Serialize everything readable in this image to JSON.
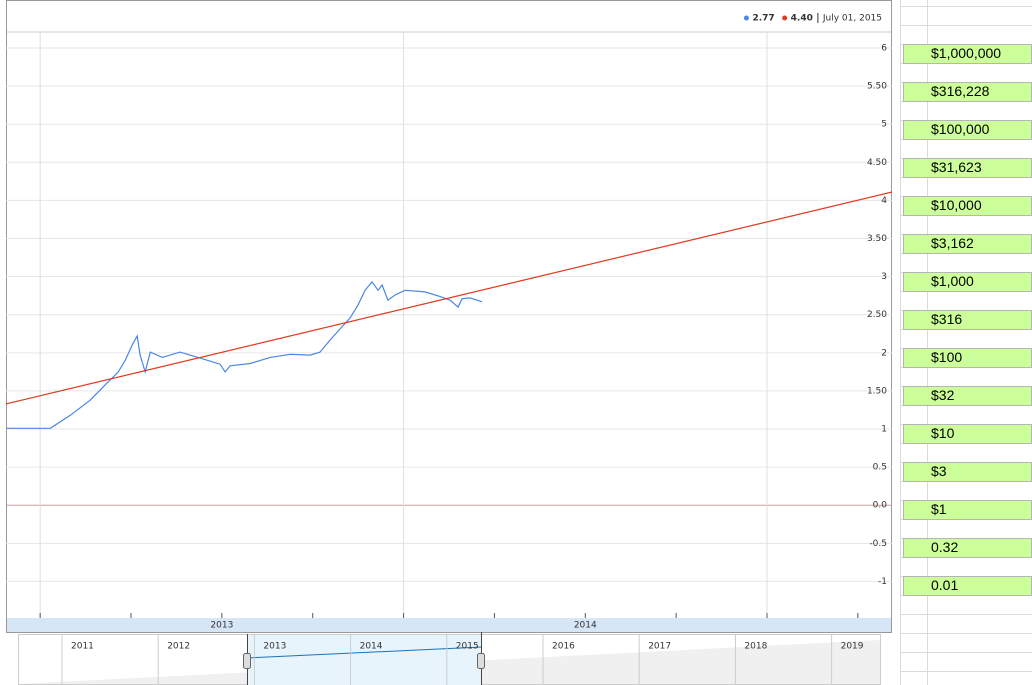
{
  "chart_data": {
    "type": "line",
    "xlim": [
      2012.906,
      2015.344
    ],
    "ylim": [
      -1.48,
      6.21
    ],
    "xticks": [
      2013,
      2013.25,
      2013.5,
      2013.75,
      2014,
      2014.25,
      2014.5,
      2014.75,
      2015,
      2015.25
    ],
    "x_labels": [
      {
        "value": 2013.5,
        "label": "2013"
      },
      {
        "value": 2014.5,
        "label": "2014"
      }
    ],
    "yticks": [
      {
        "value": 6,
        "label": "6"
      },
      {
        "value": 5.5,
        "label": "5.50"
      },
      5,
      {
        "value": 4.5,
        "label": "4.50"
      },
      4,
      {
        "value": 3.5,
        "label": "3.50"
      },
      3,
      {
        "value": 2.5,
        "label": "2.50"
      },
      2,
      {
        "value": 1.5,
        "label": "1.50"
      },
      1,
      0.5,
      {
        "value": 0,
        "label": "0.0"
      },
      -0.5,
      -1
    ],
    "grid": true,
    "series": [
      {
        "color": "#4a86e8",
        "x": [
          2012.906,
          2013.028,
          2013.083,
          2013.138,
          2013.179,
          2013.215,
          2013.234,
          2013.253,
          2013.267,
          2013.275,
          2013.289,
          2013.303,
          2013.336,
          2013.385,
          2013.44,
          2013.495,
          2013.509,
          2013.523,
          2013.578,
          2013.633,
          2013.688,
          2013.743,
          2013.77,
          2013.798,
          2013.853,
          2013.875,
          2013.894,
          2013.913,
          2013.93,
          2013.941,
          2013.957,
          2013.977,
          2014.004,
          2014.059,
          2014.1,
          2014.128,
          2014.15,
          2014.161,
          2014.183,
          2014.216
        ],
        "values": [
          1.01,
          1.01,
          1.18,
          1.38,
          1.58,
          1.75,
          1.9,
          2.1,
          2.22,
          1.97,
          1.75,
          2.01,
          1.94,
          2.01,
          1.93,
          1.85,
          1.75,
          1.83,
          1.86,
          1.94,
          1.98,
          1.97,
          2.01,
          2.17,
          2.46,
          2.63,
          2.82,
          2.93,
          2.82,
          2.89,
          2.69,
          2.76,
          2.82,
          2.8,
          2.74,
          2.69,
          2.6,
          2.71,
          2.72,
          2.67
        ]
      },
      {
        "color": "#dd3a1e",
        "x": [
          2012.906,
          2015.344
        ],
        "values": [
          1.33,
          4.11
        ]
      }
    ],
    "readout": [
      {
        "value": 2.77,
        "label": "2.77"
      },
      {
        "value": 4.4,
        "label": "4.40"
      }
    ],
    "readout_date": "July 01, 2015"
  },
  "navigator": {
    "years": [
      "2011",
      "2012",
      "2013",
      "2014",
      "2015",
      "2016",
      "2017",
      "2018",
      "2019"
    ]
  },
  "spreadsheet": {
    "cells": [
      "$1,000,000",
      "$316,228",
      "$100,000",
      "$31,623",
      "$10,000",
      "$3,162",
      "$1,000",
      "$316",
      "$100",
      "$32",
      "$10",
      "$3",
      "$1",
      "0.32",
      "0.01"
    ]
  }
}
